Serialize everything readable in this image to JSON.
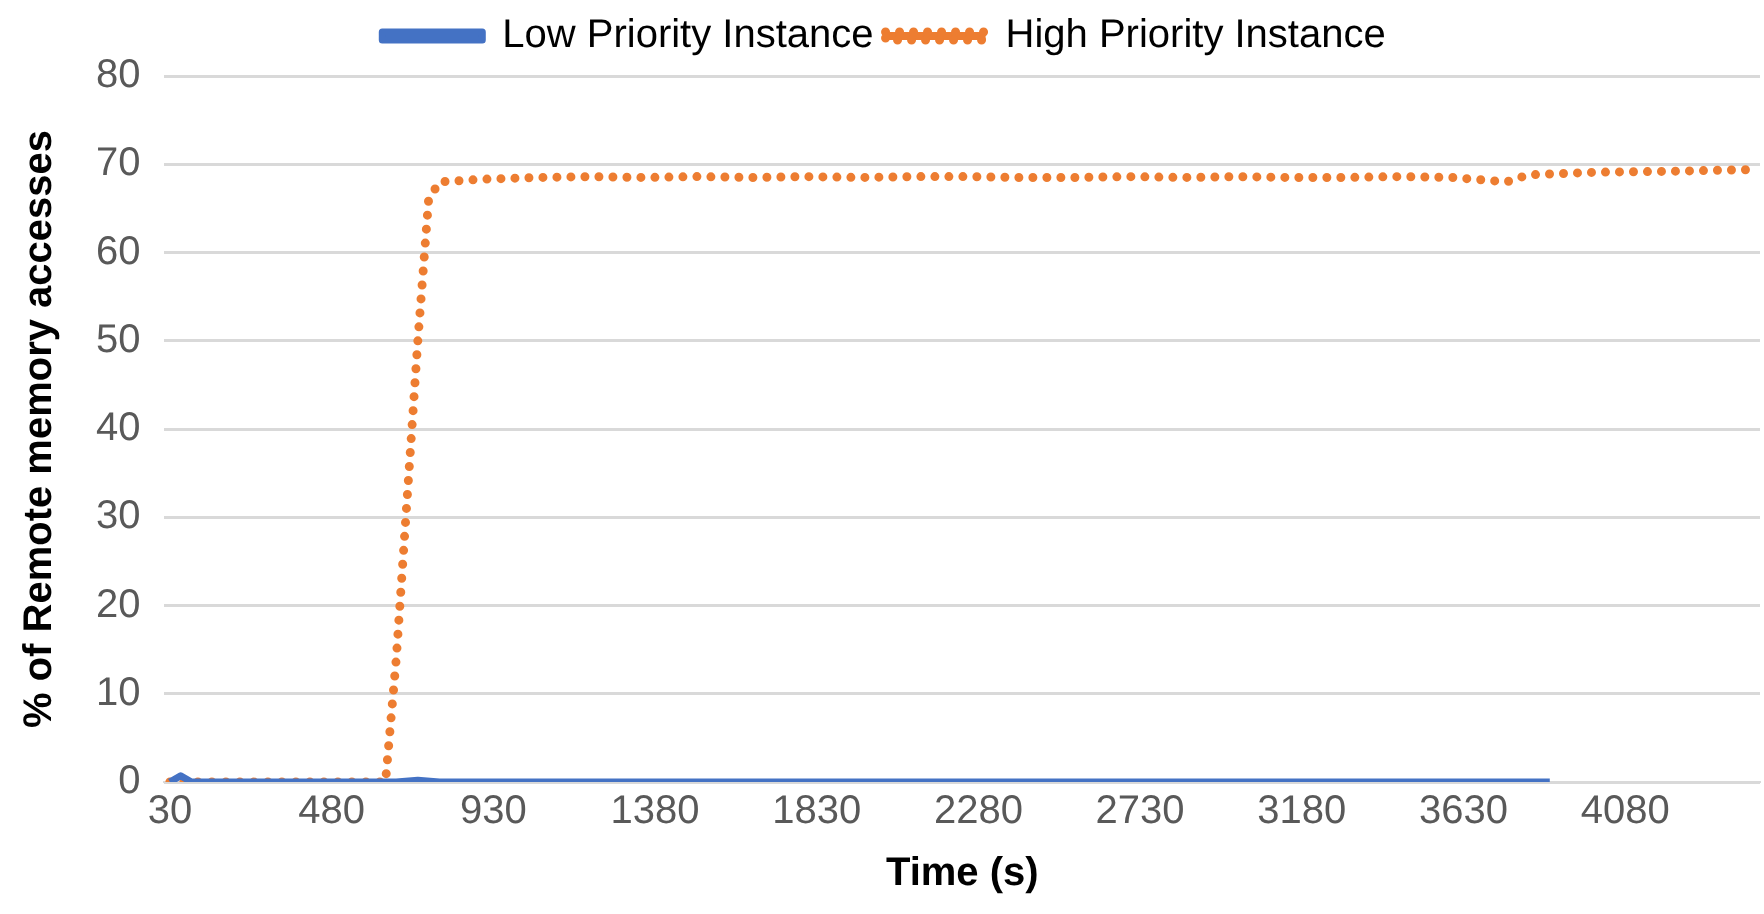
{
  "chart_data": {
    "type": "line",
    "xlabel": "Time (s)",
    "ylabel": "% of Remote memory accesses",
    "xlim": [
      15,
      4455
    ],
    "xticks": [
      30,
      480,
      930,
      1380,
      1830,
      2280,
      2730,
      3180,
      3630,
      4080
    ],
    "ylim": [
      0,
      80
    ],
    "yticks": [
      0,
      10,
      20,
      30,
      40,
      50,
      60,
      70,
      80
    ],
    "grid": "y",
    "legend": "top",
    "marker": "none",
    "series": [
      {
        "name": "Low Priority Instance",
        "color": "#4472c4",
        "line_style": "solid",
        "x": [
          30,
          60,
          90,
          660,
          720,
          780,
          3870
        ],
        "values": [
          0,
          0.7,
          0,
          0,
          0.2,
          0,
          0
        ]
      },
      {
        "name": "High Priority Instance",
        "color": "#ed7d31",
        "line_style": "dotted",
        "x": [
          30,
          630,
          660,
          690,
          720,
          750,
          780,
          900,
          1050,
          1200,
          1350,
          1500,
          1650,
          1800,
          1950,
          2100,
          2250,
          2400,
          2550,
          2700,
          2850,
          3000,
          3150,
          3300,
          3450,
          3600,
          3750,
          3810,
          4000,
          4200,
          4440
        ],
        "values": [
          0,
          0,
          14,
          32,
          50,
          66,
          68,
          68.3,
          68.5,
          68.6,
          68.5,
          68.6,
          68.5,
          68.6,
          68.5,
          68.6,
          68.6,
          68.5,
          68.5,
          68.6,
          68.5,
          68.6,
          68.5,
          68.5,
          68.6,
          68.5,
          68.0,
          68.8,
          69.1,
          69.2,
          69.4
        ]
      }
    ]
  }
}
